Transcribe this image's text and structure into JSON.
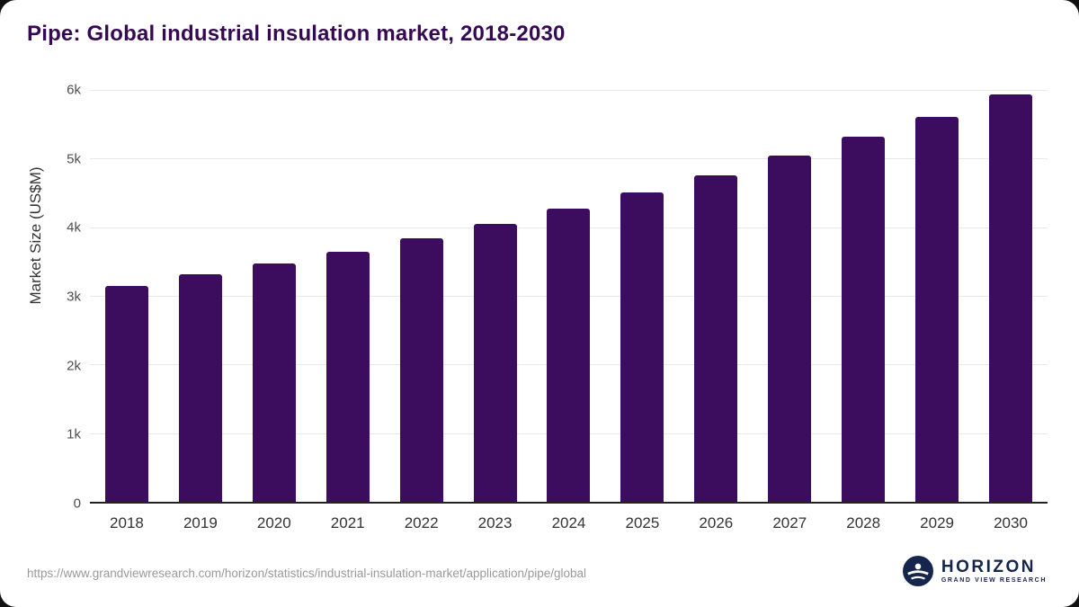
{
  "chart_data": {
    "type": "bar",
    "title": "Pipe: Global industrial insulation market, 2018-2030",
    "ylabel": "Market Size (US$M)",
    "xlabel": "",
    "categories": [
      "2018",
      "2019",
      "2020",
      "2021",
      "2022",
      "2023",
      "2024",
      "2025",
      "2026",
      "2027",
      "2028",
      "2029",
      "2030"
    ],
    "values": [
      3150,
      3320,
      3470,
      3640,
      3840,
      4050,
      4270,
      4510,
      4760,
      5040,
      5320,
      5610,
      5930
    ],
    "ylim": [
      0,
      6000
    ],
    "yticks": [
      {
        "value": 0,
        "label": "0"
      },
      {
        "value": 1000,
        "label": "1k"
      },
      {
        "value": 2000,
        "label": "2k"
      },
      {
        "value": 3000,
        "label": "3k"
      },
      {
        "value": 4000,
        "label": "4k"
      },
      {
        "value": 5000,
        "label": "5k"
      },
      {
        "value": 6000,
        "label": "6k"
      }
    ],
    "bar_color": "#3c0d5e",
    "grid": true,
    "legend_position": "none"
  },
  "footer": {
    "source_url": "https://www.grandviewresearch.com/horizon/statistics/industrial-insulation-market/application/pipe/global",
    "logo_title": "HORIZON",
    "logo_subtitle": "GRAND VIEW RESEARCH"
  },
  "colors": {
    "title": "#350a52",
    "bar": "#3c0d5e",
    "axis_text": "#333333",
    "gridline": "#e8e8e8",
    "logo_navy": "#16254c"
  }
}
